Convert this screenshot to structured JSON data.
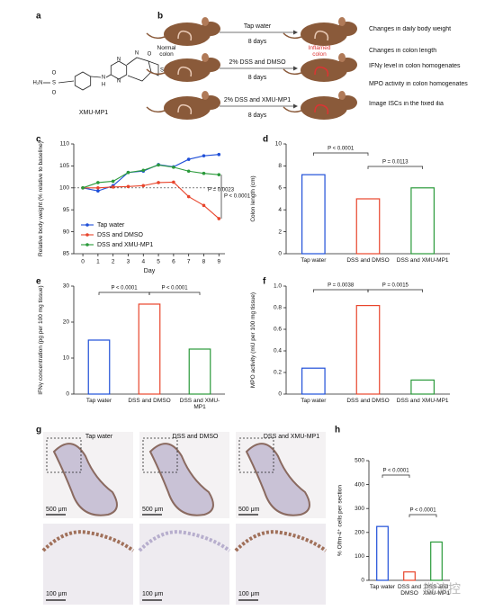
{
  "panel_labels": [
    "a",
    "b",
    "c",
    "d",
    "e",
    "f",
    "g",
    "h"
  ],
  "structure": {
    "atoms": [
      "H₂N",
      "S",
      "O",
      "O",
      "N",
      "H",
      "N",
      "N",
      "N",
      "O",
      "S"
    ],
    "name": "XMU-MP1"
  },
  "diagram": {
    "arrows": [
      {
        "above": "Tap water",
        "below": "8 days"
      },
      {
        "above": "2% DSS and DMSO",
        "below": "8 days"
      },
      {
        "above": "2% DSS and XMU-MP1",
        "below": "8 days"
      }
    ],
    "normal_label": "Normal colon",
    "inflamed_label": "Inflamed colon",
    "readouts": [
      "Changes in daily body weight",
      "Changes in colon length",
      "IFNγ level in colon homogenates",
      "MPO activity in colon homogenates",
      "Image ISCs in the fixed ilia"
    ]
  },
  "chart_data": [
    {
      "type": "line",
      "x_label": "Day",
      "y_label": "Relative body weight (% relative to baseline)",
      "x": [
        0,
        1,
        2,
        3,
        4,
        5,
        6,
        7,
        8,
        9
      ],
      "xlim": [
        -0.6,
        9.4
      ],
      "xticks": [
        0,
        1,
        2,
        3,
        4,
        5,
        6,
        7,
        8,
        9
      ],
      "ylim": [
        85,
        110
      ],
      "yticks": [
        85,
        90,
        95,
        100,
        105,
        110
      ],
      "hline": 100,
      "series": [
        {
          "name": "Tap water",
          "color": "#1f4fd8",
          "values": [
            100,
            99.3,
            100.5,
            103.5,
            103.8,
            105.3,
            104.8,
            106.5,
            107.3,
            107.6
          ]
        },
        {
          "name": "DSS and DMSO",
          "color": "#e8452c",
          "values": [
            100,
            100,
            100.2,
            100.3,
            100.5,
            101.2,
            101.3,
            98,
            96,
            93
          ]
        },
        {
          "name": "DSS and XMU-MP1",
          "color": "#2a9a3a",
          "values": [
            100,
            101.2,
            101.5,
            103.5,
            104,
            105.2,
            104.7,
            103.8,
            103.3,
            103
          ]
        }
      ],
      "annotations": [
        "P = 0.0023",
        "P < 0.0001"
      ]
    },
    {
      "type": "bar",
      "y_label": "Colon length (cm)",
      "categories": [
        "Tap water",
        "DSS and DMSO",
        "DSS and XMU-MP1"
      ],
      "values": [
        7.2,
        5.0,
        6.0
      ],
      "colors": [
        "#1f4fd8",
        "#e8452c",
        "#2a9a3a"
      ],
      "ylim": [
        0,
        10
      ],
      "yticks": [
        0,
        2,
        4,
        6,
        8,
        10
      ],
      "annotations": [
        "P < 0.0001",
        "P = 0.0113"
      ]
    },
    {
      "type": "bar",
      "y_label": "IFNγ concentration (pg per 100 mg tissue)",
      "categories": [
        "Tap water",
        "DSS and DMSO",
        "DSS and XMU-MP1"
      ],
      "values": [
        15,
        25,
        12.5
      ],
      "colors": [
        "#1f4fd8",
        "#e8452c",
        "#2a9a3a"
      ],
      "ylim": [
        0,
        30
      ],
      "yticks": [
        0,
        10,
        20,
        30
      ],
      "annotations": [
        "P < 0.0001",
        "P < 0.0001"
      ]
    },
    {
      "type": "bar",
      "y_label": "MPO activity (mU per 100 mg tissue)",
      "categories": [
        "Tap water",
        "DSS and DMSO",
        "DSS and XMU-MP1"
      ],
      "values": [
        0.24,
        0.82,
        0.13
      ],
      "colors": [
        "#1f4fd8",
        "#e8452c",
        "#2a9a3a"
      ],
      "ylim": [
        0,
        1
      ],
      "yticks": [
        0,
        0.2,
        0.4,
        0.6,
        0.8,
        {
          "value": 1,
          "label": "1.0"
        }
      ],
      "annotations": [
        "P = 0.0038",
        "P = 0.0015"
      ]
    },
    {
      "type": "bar",
      "y_label": "% Olfm-4⁺ cells per section",
      "categories": [
        "Tap water",
        "DSS and DMSO",
        "DSS and XMU-MP1"
      ],
      "values": [
        225,
        35,
        160
      ],
      "colors": [
        "#1f4fd8",
        "#e8452c",
        "#2a9a3a"
      ],
      "ylim": [
        0,
        500
      ],
      "yticks": [
        0,
        100,
        200,
        300,
        400,
        500
      ],
      "annotations": [
        "P < 0.0001",
        "P < 0.0001"
      ]
    }
  ],
  "images": {
    "titles": [
      "Tap water",
      "DSS and DMSO",
      "DSS and XMU-MP1"
    ],
    "scale_top": [
      "500 μm",
      "500 μm",
      "500 μm"
    ],
    "scale_bottom": [
      "100 μm",
      "100 μm",
      "100 μm"
    ]
  },
  "watermark": "微流控"
}
